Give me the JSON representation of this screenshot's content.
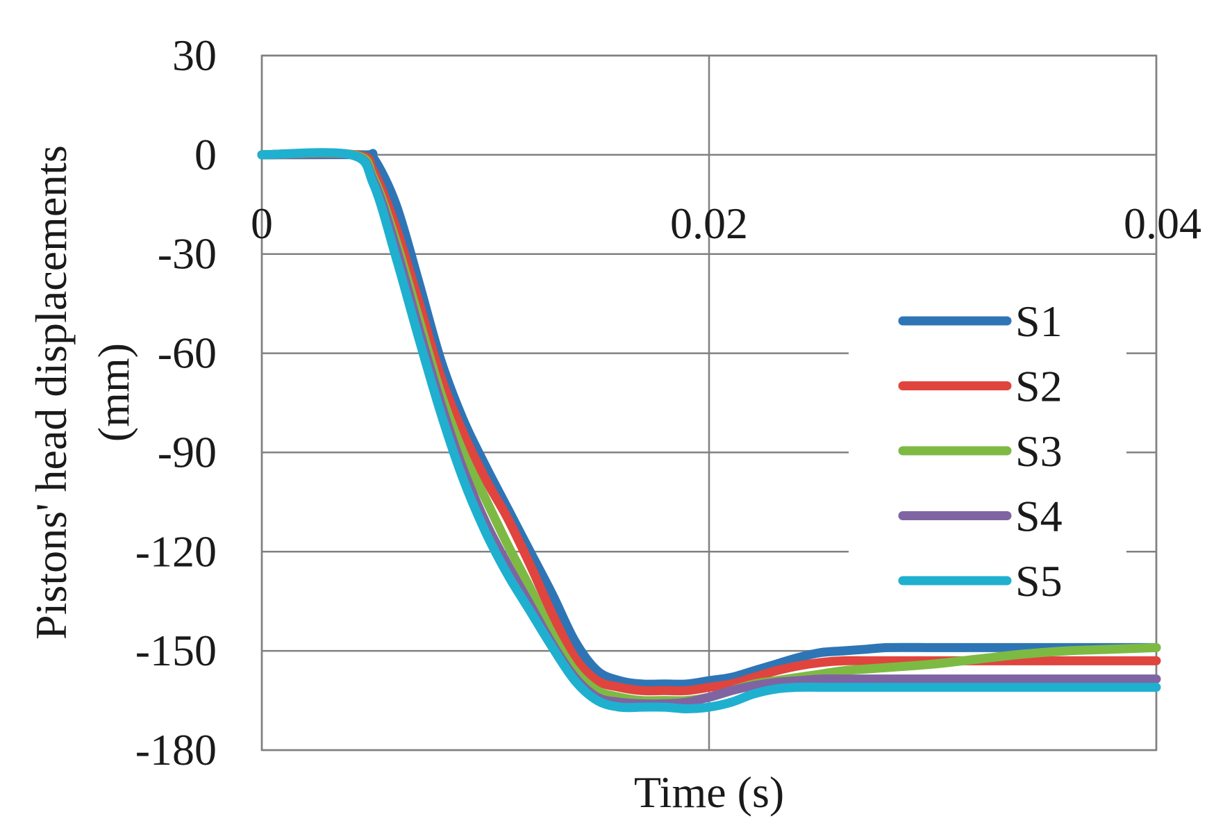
{
  "chart_data": {
    "type": "line",
    "xlabel": "Time (s)",
    "ylabel_line1": "Pistons' head displacements",
    "ylabel_line2": "(mm)",
    "xlim": [
      0,
      0.04
    ],
    "ylim": [
      -180,
      30
    ],
    "x_ticks": [
      0,
      0.02,
      0.04
    ],
    "x_tick_labels": [
      "0",
      "0.02",
      "0.04"
    ],
    "y_ticks": [
      30,
      0,
      -30,
      -60,
      -90,
      -120,
      -150,
      -180
    ],
    "y_tick_labels": [
      "30",
      "0",
      "-30",
      "-60",
      "-90",
      "-120",
      "-150",
      "-180"
    ],
    "grid": true,
    "legend_position": "right",
    "series": [
      {
        "name": "S1",
        "color": "#2e75b6",
        "x": [
          0,
          0.0045,
          0.005,
          0.006,
          0.007,
          0.008,
          0.009,
          0.01,
          0.011,
          0.012,
          0.013,
          0.014,
          0.015,
          0.016,
          0.017,
          0.018,
          0.019,
          0.02,
          0.021,
          0.022,
          0.023,
          0.024,
          0.025,
          0.026,
          0.027,
          0.028,
          0.03,
          0.032,
          0.034,
          0.036,
          0.038,
          0.04
        ],
        "y": [
          0,
          0,
          -1,
          -15,
          -38,
          -62,
          -80,
          -94,
          -107,
          -120,
          -133,
          -147,
          -156,
          -159,
          -160,
          -160,
          -160,
          -159,
          -158,
          -156,
          -154,
          -152,
          -150.5,
          -150,
          -149.5,
          -149,
          -149,
          -149,
          -149,
          -149,
          -149,
          -149
        ]
      },
      {
        "name": "S2",
        "color": "#e0443e",
        "x": [
          0,
          0.0042,
          0.005,
          0.006,
          0.007,
          0.008,
          0.009,
          0.01,
          0.011,
          0.012,
          0.013,
          0.014,
          0.015,
          0.016,
          0.017,
          0.018,
          0.019,
          0.02,
          0.021,
          0.022,
          0.023,
          0.024,
          0.025,
          0.026,
          0.027,
          0.028,
          0.03,
          0.032,
          0.034,
          0.036,
          0.038,
          0.04
        ],
        "y": [
          0,
          0,
          -5,
          -22,
          -44,
          -67,
          -84,
          -98,
          -110,
          -124,
          -139,
          -152,
          -159,
          -161,
          -162,
          -162,
          -162,
          -161,
          -160,
          -158,
          -156,
          -154.5,
          -153.5,
          -153,
          -153,
          -153,
          -153,
          -153,
          -153,
          -153,
          -153,
          -153
        ]
      },
      {
        "name": "S3",
        "color": "#7dba43",
        "x": [
          0,
          0.0041,
          0.005,
          0.006,
          0.007,
          0.008,
          0.009,
          0.01,
          0.011,
          0.012,
          0.013,
          0.014,
          0.015,
          0.016,
          0.017,
          0.018,
          0.019,
          0.02,
          0.021,
          0.022,
          0.023,
          0.024,
          0.025,
          0.026,
          0.027,
          0.028,
          0.03,
          0.032,
          0.034,
          0.036,
          0.038,
          0.04
        ],
        "y": [
          0,
          0,
          -7,
          -26,
          -49,
          -72,
          -90,
          -104,
          -118,
          -131,
          -145,
          -156,
          -162,
          -164,
          -165,
          -165,
          -165,
          -164,
          -162,
          -160,
          -159,
          -158,
          -157,
          -156,
          -155.5,
          -155,
          -154,
          -152.5,
          -151,
          -150,
          -149.5,
          -149
        ]
      },
      {
        "name": "S4",
        "color": "#8064a2",
        "x": [
          0,
          0.004,
          0.005,
          0.006,
          0.007,
          0.008,
          0.009,
          0.01,
          0.011,
          0.012,
          0.013,
          0.014,
          0.015,
          0.016,
          0.017,
          0.018,
          0.019,
          0.02,
          0.021,
          0.022,
          0.023,
          0.024,
          0.025,
          0.026,
          0.027,
          0.028,
          0.03,
          0.032,
          0.034,
          0.036,
          0.038,
          0.04
        ],
        "y": [
          0,
          0,
          -8,
          -28,
          -52,
          -75,
          -95,
          -111,
          -124,
          -136,
          -148,
          -158,
          -164,
          -165.5,
          -166,
          -166,
          -165.5,
          -164,
          -162,
          -160.5,
          -159.5,
          -159,
          -158.5,
          -158.5,
          -158.5,
          -158.5,
          -158.5,
          -158.5,
          -158.5,
          -158.5,
          -158.5,
          -158.5
        ]
      },
      {
        "name": "S5",
        "color": "#1fb0cf",
        "x": [
          0,
          0.004,
          0.005,
          0.006,
          0.007,
          0.008,
          0.009,
          0.01,
          0.011,
          0.012,
          0.013,
          0.014,
          0.015,
          0.016,
          0.017,
          0.018,
          0.019,
          0.02,
          0.021,
          0.022,
          0.023,
          0.024,
          0.025,
          0.026,
          0.027,
          0.028,
          0.03,
          0.032,
          0.034,
          0.036,
          0.038,
          0.04
        ],
        "y": [
          0,
          0,
          -9,
          -31,
          -55,
          -78,
          -98,
          -114,
          -127,
          -138,
          -149,
          -159,
          -165,
          -167,
          -167,
          -167,
          -167.5,
          -167,
          -165.5,
          -163,
          -161.5,
          -161,
          -161,
          -161,
          -161,
          -161,
          -161,
          -161,
          -161,
          -161,
          -161,
          -161
        ]
      }
    ]
  }
}
